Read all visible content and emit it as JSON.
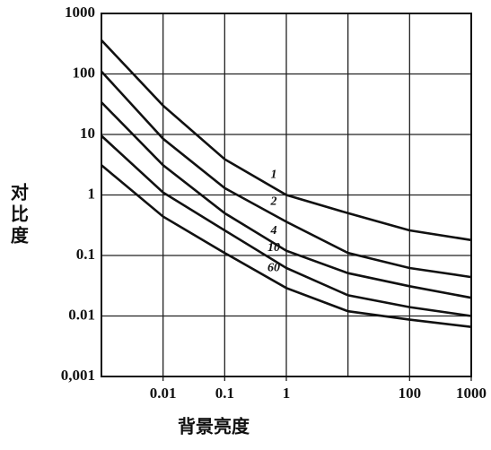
{
  "chart_data": {
    "type": "line",
    "x_label": "背景亮度",
    "y_label": "对比度",
    "x_scale": "log",
    "y_scale": "log",
    "grid": true,
    "color": "#111111",
    "xlim": [
      0.001,
      1000
    ],
    "ylim": [
      0.001,
      1000
    ],
    "xticks": [
      0.01,
      0.1,
      1,
      100,
      1000
    ],
    "xgrid": [
      0.01,
      0.1,
      1,
      10,
      100,
      1000
    ],
    "yticks": [
      {
        "value": 0.001,
        "label": "0,001"
      },
      0.01,
      0.1,
      1,
      10,
      100,
      1000
    ],
    "x": [
      0.001,
      0.01,
      0.1,
      1,
      10,
      100,
      1000
    ],
    "series": [
      {
        "name": "1",
        "values": [
          360,
          30,
          3.9,
          1,
          0.5,
          0.26,
          0.18
        ]
      },
      {
        "name": "2",
        "values": [
          110,
          8.5,
          1.3,
          0.36,
          0.11,
          0.062,
          0.044
        ]
      },
      {
        "name": "4",
        "values": [
          34,
          3.1,
          0.5,
          0.12,
          0.051,
          0.031,
          0.02
        ]
      },
      {
        "name": "10",
        "values": [
          9.5,
          1.1,
          0.26,
          0.062,
          0.022,
          0.014,
          0.01
        ]
      },
      {
        "name": "60",
        "values": [
          3.1,
          0.44,
          0.11,
          0.029,
          0.012,
          0.0087,
          0.0066
        ]
      }
    ]
  }
}
